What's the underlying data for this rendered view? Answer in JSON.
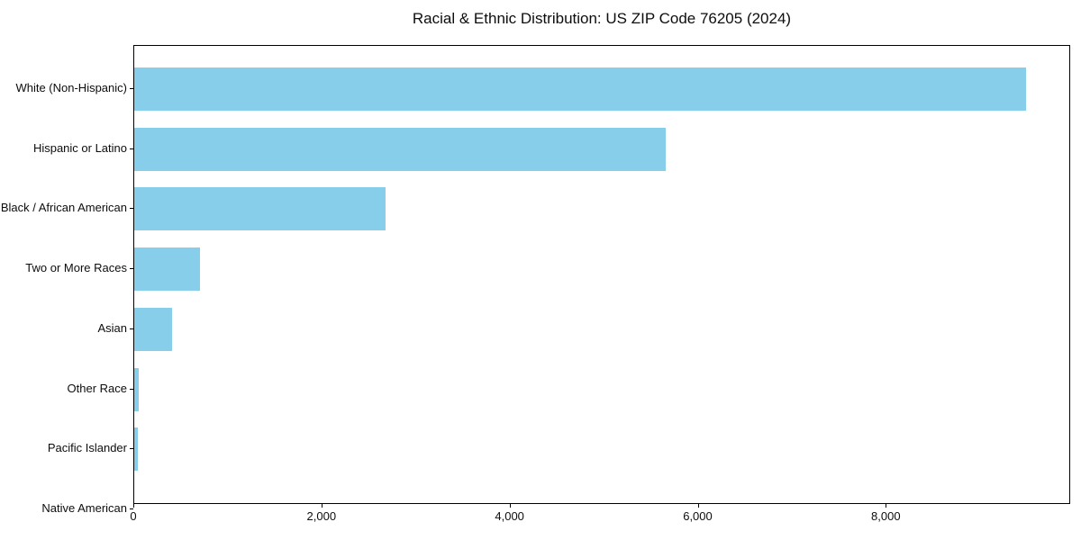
{
  "chart_data": {
    "type": "bar",
    "orientation": "horizontal",
    "title": "Racial & Ethnic Distribution: US ZIP Code 76205 (2024)",
    "categories": [
      "White (Non-Hispanic)",
      "Hispanic or Latino",
      "Black / African American",
      "Two or More Races",
      "Asian",
      "Other Race",
      "Pacific Islander",
      "Native American"
    ],
    "values": [
      9480,
      5650,
      2670,
      700,
      400,
      50,
      40,
      0
    ],
    "xlabel": "",
    "ylabel": "",
    "xlim": [
      0,
      9960
    ],
    "x_ticks": [
      0,
      2000,
      4000,
      6000,
      8000
    ],
    "x_tick_labels": [
      "0",
      "2,000",
      "4,000",
      "6,000",
      "8,000"
    ],
    "bar_color": "#87CEEB",
    "spine_color": "#000000",
    "grid": false,
    "legend_position": "none"
  }
}
